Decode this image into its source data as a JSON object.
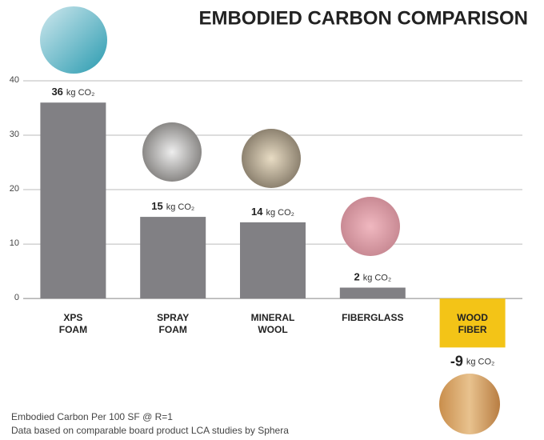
{
  "chart_data": {
    "type": "bar",
    "title": "EMBODIED CARBON COMPARISON",
    "categories": [
      "XPS\nFOAM",
      "SPRAY\nFOAM",
      "MINERAL\nWOOL",
      "FIBERGLASS",
      "WOOD\nFIBER"
    ],
    "values": [
      36,
      15,
      14,
      2,
      -9
    ],
    "value_unit": "kg CO₂",
    "colors": [
      "#818084",
      "#818084",
      "#818084",
      "#818084",
      "#f3c417"
    ],
    "ylim": [
      -26,
      40
    ],
    "yticks": [
      0,
      10,
      20,
      30,
      40
    ],
    "grid": true,
    "footnotes": [
      "Embodied Carbon Per 100 SF @ R=1",
      "Data based on comparable board product LCA studies by Sphera"
    ]
  }
}
